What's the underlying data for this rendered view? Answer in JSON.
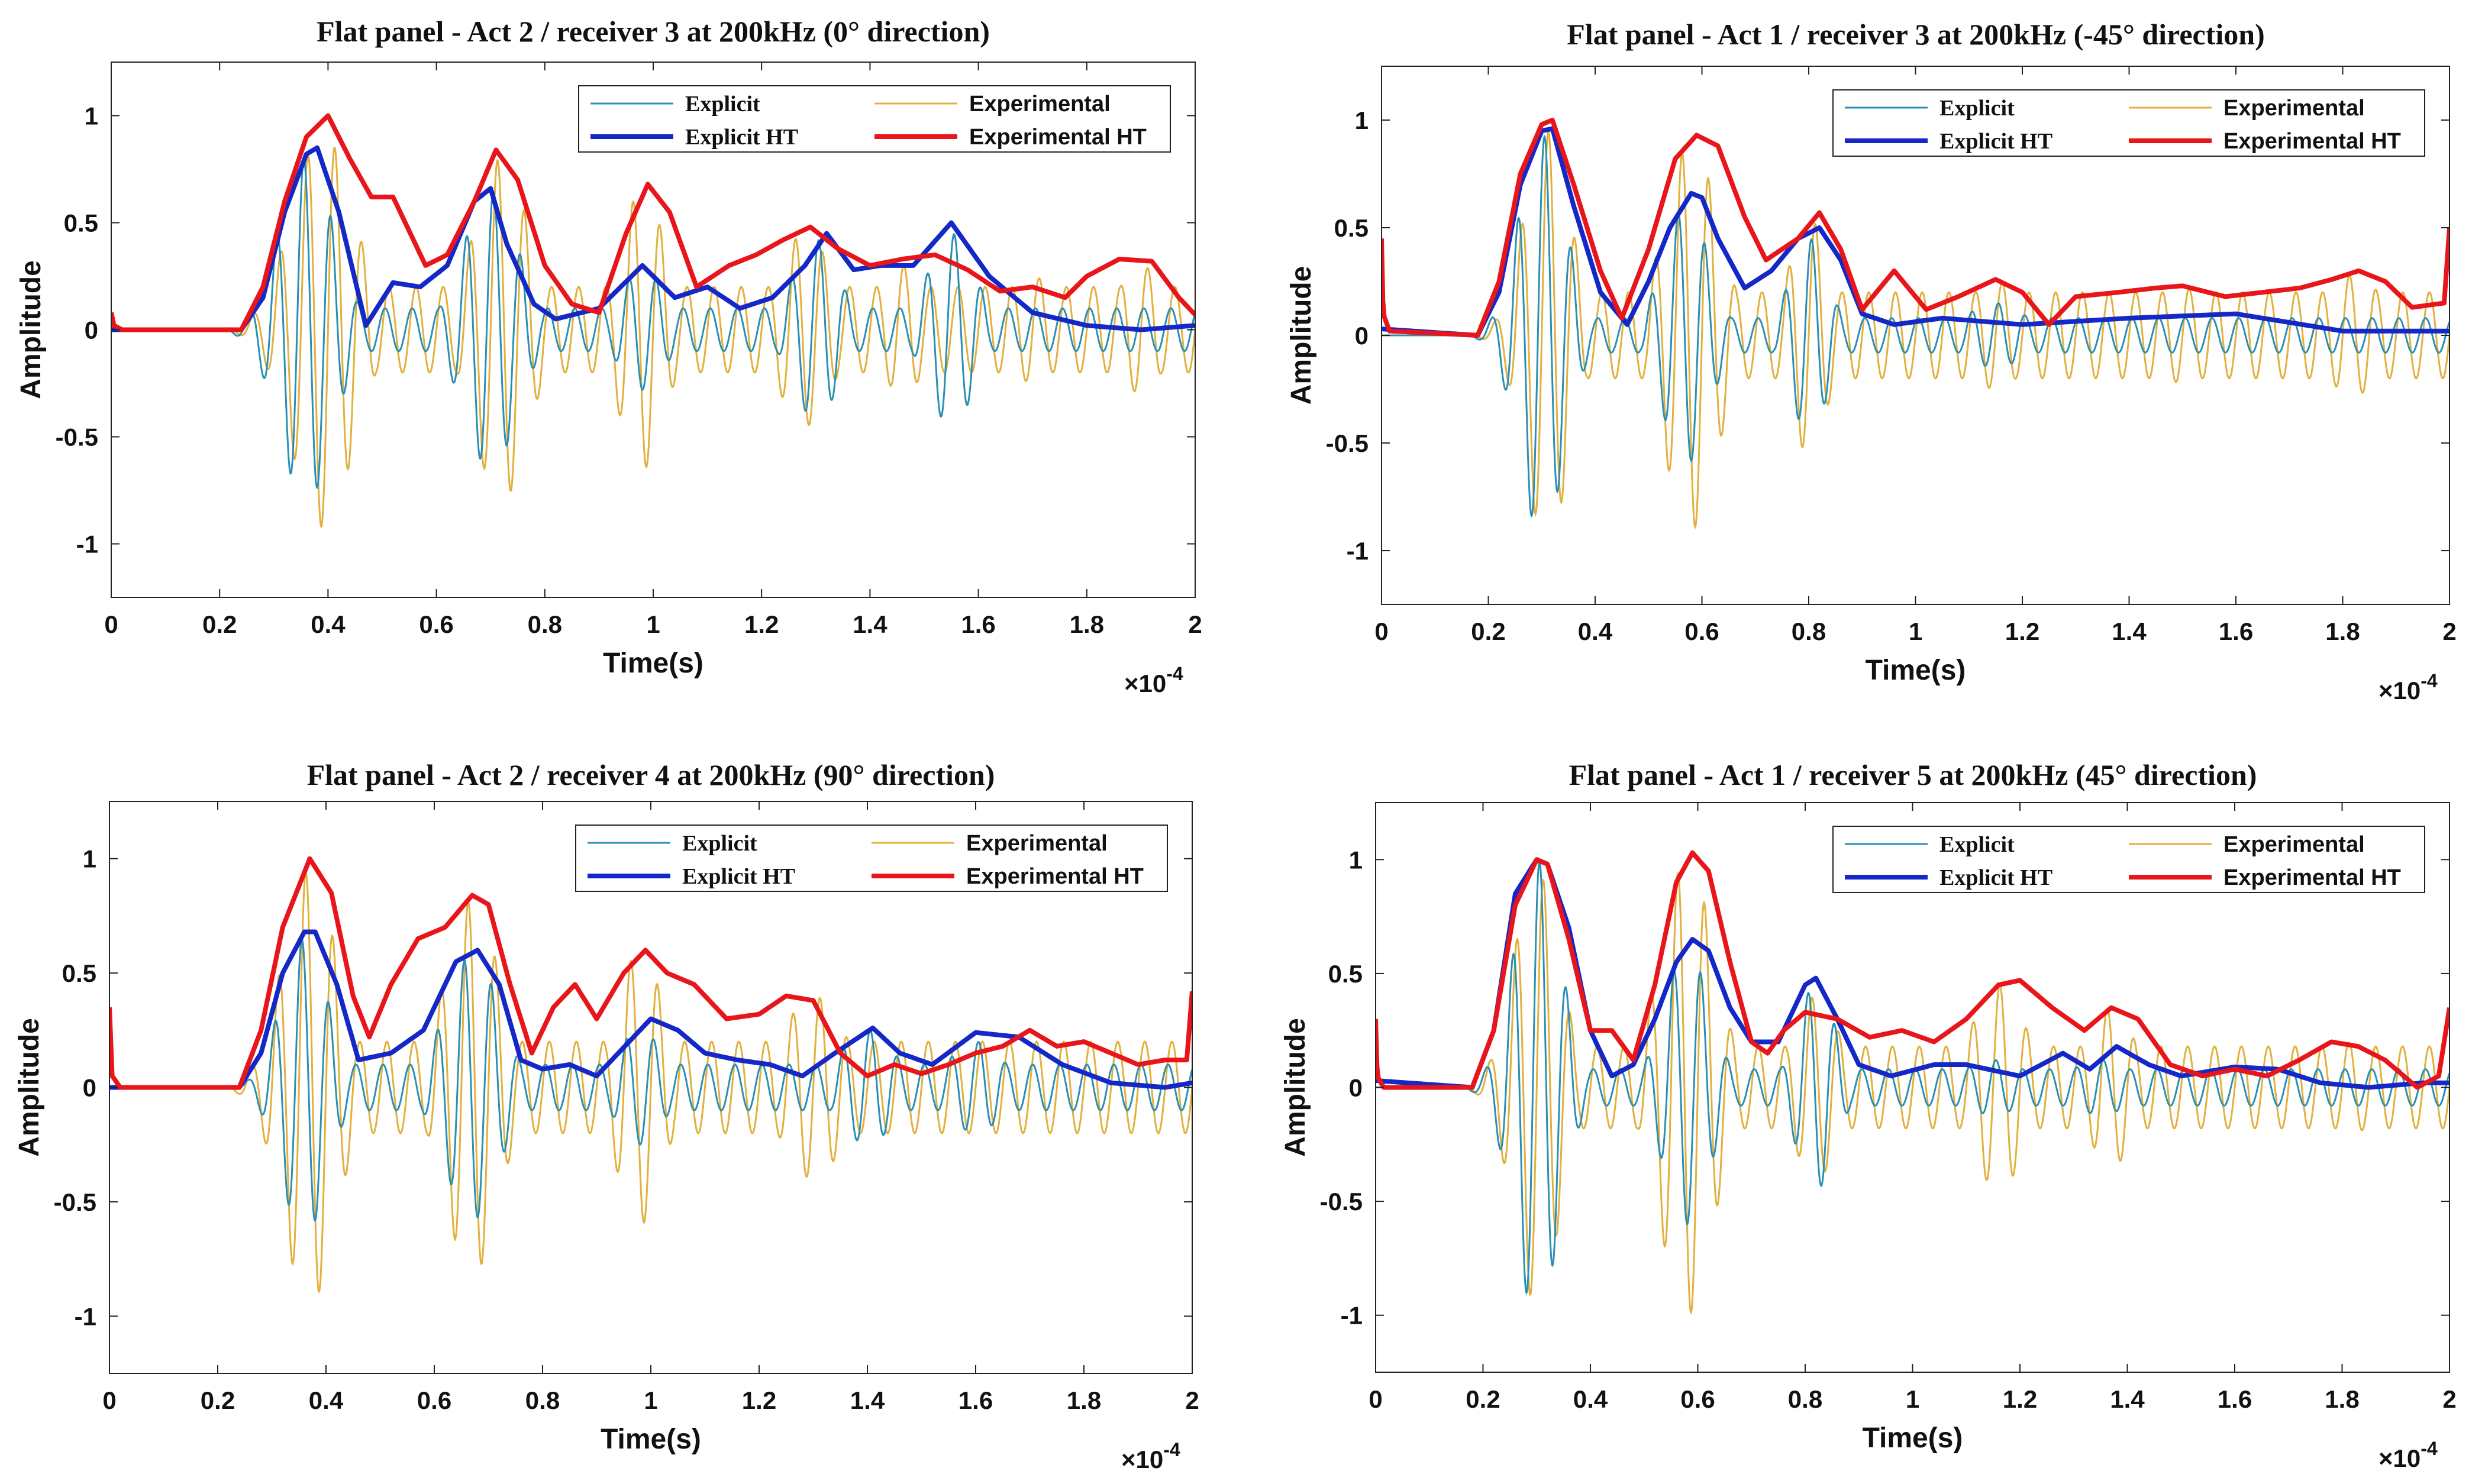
{
  "figure": {
    "colors": {
      "explicit": "#2a8fb5",
      "experimental": "#e2b03c",
      "explicit_ht": "#1428c8",
      "experimental_ht": "#e8161a",
      "axis": "#222222"
    }
  },
  "chart_data": [
    {
      "type": "line",
      "title": "Flat panel - Act 2 / receiver 3 at 200kHz (0° direction)",
      "xlabel": "Time(s)",
      "ylabel": "Amplitude",
      "x_multiplier": "×10",
      "x_exponent": "-4",
      "xlim": [
        0,
        2
      ],
      "ylim": [
        -1.25,
        1.25
      ],
      "xticks": [
        "0",
        "0.2",
        "0.4",
        "0.6",
        "0.8",
        "1",
        "1.2",
        "1.4",
        "1.6",
        "1.8",
        "2"
      ],
      "yticks": [
        "-1",
        "-0.5",
        "0",
        "0.5",
        "1"
      ],
      "legend": {
        "position": "top-right",
        "entries": [
          "Explicit",
          "Experimental",
          "Explicit HT",
          "Experimental HT"
        ]
      },
      "oscillation_cycles_per_unit": 20,
      "series": [
        {
          "name": "Explicit HT",
          "key": "explicit_ht",
          "x": [
            0,
            0.24,
            0.28,
            0.32,
            0.36,
            0.38,
            0.42,
            0.47,
            0.52,
            0.57,
            0.62,
            0.67,
            0.7,
            0.73,
            0.78,
            0.82,
            0.9,
            0.98,
            1.04,
            1.1,
            1.16,
            1.22,
            1.28,
            1.32,
            1.37,
            1.42,
            1.48,
            1.55,
            1.62,
            1.7,
            1.8,
            1.9,
            2.0
          ],
          "y": [
            0,
            0,
            0.15,
            0.55,
            0.82,
            0.85,
            0.55,
            0.02,
            0.22,
            0.2,
            0.3,
            0.6,
            0.66,
            0.4,
            0.12,
            0.05,
            0.1,
            0.3,
            0.15,
            0.2,
            0.1,
            0.15,
            0.3,
            0.45,
            0.28,
            0.3,
            0.3,
            0.5,
            0.25,
            0.08,
            0.02,
            0.0,
            0.02
          ]
        },
        {
          "name": "Experimental HT",
          "key": "experimental_ht",
          "x": [
            0,
            0.005,
            0.02,
            0.24,
            0.28,
            0.32,
            0.36,
            0.4,
            0.44,
            0.48,
            0.52,
            0.58,
            0.62,
            0.67,
            0.71,
            0.75,
            0.8,
            0.85,
            0.9,
            0.95,
            0.99,
            1.03,
            1.08,
            1.14,
            1.19,
            1.24,
            1.29,
            1.34,
            1.4,
            1.46,
            1.52,
            1.58,
            1.64,
            1.7,
            1.76,
            1.8,
            1.86,
            1.92,
            1.97,
            2.0
          ],
          "y": [
            0.08,
            0.02,
            0.0,
            0.0,
            0.2,
            0.6,
            0.9,
            1.0,
            0.8,
            0.62,
            0.62,
            0.3,
            0.35,
            0.6,
            0.84,
            0.7,
            0.3,
            0.12,
            0.08,
            0.45,
            0.68,
            0.55,
            0.2,
            0.3,
            0.35,
            0.42,
            0.48,
            0.38,
            0.3,
            0.33,
            0.35,
            0.28,
            0.18,
            0.2,
            0.15,
            0.25,
            0.33,
            0.32,
            0.15,
            0.07
          ]
        },
        {
          "name": "Explicit",
          "key": "explicit",
          "peak_x": [
            0.36,
            0.7,
            0.98,
            1.3,
            1.55
          ],
          "peak_amp": [
            0.8,
            0.65,
            0.28,
            0.42,
            0.45
          ],
          "peak_width": [
            0.07,
            0.07,
            0.06,
            0.06,
            0.06
          ],
          "floor_amp": 0.1,
          "onset": 0.26
        },
        {
          "name": "Experimental",
          "key": "experimental",
          "peak_x": [
            0.39,
            0.72,
            0.98,
            1.28,
            1.46,
            1.7,
            1.9
          ],
          "peak_amp": [
            0.92,
            0.8,
            0.65,
            0.45,
            0.3,
            0.25,
            0.3
          ],
          "peak_width": [
            0.08,
            0.07,
            0.06,
            0.07,
            0.06,
            0.06,
            0.06
          ],
          "floor_amp": 0.2,
          "onset": 0.26
        }
      ]
    },
    {
      "type": "line",
      "title": "Flat panel - Act 1 / receiver 3 at 200kHz (-45° direction)",
      "xlabel": "Time(s)",
      "ylabel": "Amplitude",
      "x_multiplier": "×10",
      "x_exponent": "-4",
      "xlim": [
        0,
        2
      ],
      "ylim": [
        -1.25,
        1.25
      ],
      "xticks": [
        "0",
        "0.2",
        "0.4",
        "0.6",
        "0.8",
        "1",
        "1.2",
        "1.4",
        "1.6",
        "1.8",
        "2"
      ],
      "yticks": [
        "-1",
        "-0.5",
        "0",
        "0.5",
        "1"
      ],
      "legend": {
        "position": "top-right",
        "entries": [
          "Explicit",
          "Experimental",
          "Explicit HT",
          "Experimental HT"
        ]
      },
      "oscillation_cycles_per_unit": 20,
      "series": [
        {
          "name": "Explicit HT",
          "key": "explicit_ht",
          "x": [
            0,
            0.18,
            0.22,
            0.26,
            0.3,
            0.32,
            0.36,
            0.41,
            0.46,
            0.5,
            0.54,
            0.58,
            0.6,
            0.63,
            0.68,
            0.73,
            0.78,
            0.82,
            0.86,
            0.9,
            0.96,
            1.05,
            1.2,
            1.4,
            1.6,
            1.8,
            2.0
          ],
          "y": [
            0.03,
            0.0,
            0.2,
            0.7,
            0.95,
            0.96,
            0.6,
            0.2,
            0.05,
            0.25,
            0.5,
            0.66,
            0.64,
            0.45,
            0.22,
            0.3,
            0.45,
            0.5,
            0.35,
            0.1,
            0.05,
            0.08,
            0.05,
            0.08,
            0.1,
            0.02,
            0.02
          ]
        },
        {
          "name": "Experimental HT",
          "key": "experimental_ht",
          "x": [
            0,
            0.003,
            0.015,
            0.18,
            0.22,
            0.26,
            0.3,
            0.32,
            0.36,
            0.41,
            0.45,
            0.5,
            0.55,
            0.59,
            0.63,
            0.68,
            0.72,
            0.78,
            0.82,
            0.86,
            0.9,
            0.96,
            1.02,
            1.08,
            1.15,
            1.2,
            1.25,
            1.3,
            1.38,
            1.45,
            1.5,
            1.58,
            1.65,
            1.72,
            1.78,
            1.83,
            1.88,
            1.93,
            1.99,
            2.0
          ],
          "y": [
            0.45,
            0.1,
            0.02,
            0.0,
            0.25,
            0.75,
            0.98,
            1.0,
            0.7,
            0.3,
            0.08,
            0.4,
            0.82,
            0.93,
            0.88,
            0.55,
            0.35,
            0.45,
            0.57,
            0.4,
            0.12,
            0.3,
            0.12,
            0.18,
            0.26,
            0.2,
            0.05,
            0.18,
            0.2,
            0.22,
            0.23,
            0.18,
            0.2,
            0.22,
            0.26,
            0.3,
            0.25,
            0.13,
            0.15,
            0.5
          ]
        },
        {
          "name": "Explicit",
          "key": "explicit",
          "peak_x": [
            0.3,
            0.57,
            0.8,
            1.15
          ],
          "peak_amp": [
            0.93,
            0.6,
            0.45,
            0.15
          ],
          "peak_width": [
            0.06,
            0.06,
            0.05,
            0.08
          ],
          "floor_amp": 0.08,
          "onset": 0.2
        },
        {
          "name": "Experimental",
          "key": "experimental",
          "peak_x": [
            0.31,
            0.58,
            0.8,
            1.15,
            1.5,
            1.82
          ],
          "peak_amp": [
            0.95,
            0.9,
            0.55,
            0.25,
            0.22,
            0.28
          ],
          "peak_width": [
            0.06,
            0.07,
            0.05,
            0.08,
            0.1,
            0.08
          ],
          "floor_amp": 0.2,
          "onset": 0.2
        }
      ]
    },
    {
      "type": "line",
      "title": "Flat panel - Act 2 / receiver 4 at 200kHz (90° direction)",
      "xlabel": "Time(s)",
      "ylabel": "Amplitude",
      "x_multiplier": "×10",
      "x_exponent": "-4",
      "xlim": [
        0,
        2
      ],
      "ylim": [
        -1.25,
        1.25
      ],
      "xticks": [
        "0",
        "0.2",
        "0.4",
        "0.6",
        "0.8",
        "1",
        "1.2",
        "1.4",
        "1.6",
        "1.8",
        "2"
      ],
      "yticks": [
        "-1",
        "-0.5",
        "0",
        "0.5",
        "1"
      ],
      "legend": {
        "position": "top-right",
        "entries": [
          "Explicit",
          "Experimental",
          "Explicit HT",
          "Experimental HT"
        ]
      },
      "oscillation_cycles_per_unit": 20,
      "series": [
        {
          "name": "Explicit HT",
          "key": "explicit_ht",
          "x": [
            0,
            0.24,
            0.28,
            0.32,
            0.36,
            0.38,
            0.42,
            0.46,
            0.52,
            0.58,
            0.64,
            0.68,
            0.72,
            0.76,
            0.8,
            0.85,
            0.9,
            0.96,
            1.0,
            1.05,
            1.1,
            1.16,
            1.22,
            1.28,
            1.34,
            1.41,
            1.46,
            1.52,
            1.6,
            1.68,
            1.76,
            1.85,
            1.95,
            2.0
          ],
          "y": [
            0,
            0,
            0.15,
            0.5,
            0.68,
            0.68,
            0.45,
            0.12,
            0.15,
            0.25,
            0.55,
            0.6,
            0.45,
            0.12,
            0.08,
            0.1,
            0.05,
            0.2,
            0.3,
            0.25,
            0.15,
            0.12,
            0.1,
            0.05,
            0.15,
            0.26,
            0.15,
            0.1,
            0.24,
            0.22,
            0.1,
            0.02,
            0.0,
            0.02
          ]
        },
        {
          "name": "Experimental HT",
          "key": "experimental_ht",
          "x": [
            0,
            0.005,
            0.02,
            0.24,
            0.28,
            0.32,
            0.37,
            0.41,
            0.45,
            0.48,
            0.52,
            0.57,
            0.62,
            0.67,
            0.7,
            0.74,
            0.78,
            0.82,
            0.86,
            0.9,
            0.95,
            0.99,
            1.03,
            1.08,
            1.14,
            1.2,
            1.25,
            1.3,
            1.35,
            1.4,
            1.45,
            1.5,
            1.55,
            1.6,
            1.65,
            1.7,
            1.75,
            1.8,
            1.85,
            1.9,
            1.95,
            1.99,
            2.0
          ],
          "y": [
            0.35,
            0.05,
            0.0,
            0.0,
            0.25,
            0.7,
            1.0,
            0.85,
            0.4,
            0.22,
            0.45,
            0.65,
            0.7,
            0.84,
            0.8,
            0.45,
            0.15,
            0.35,
            0.45,
            0.3,
            0.5,
            0.6,
            0.5,
            0.45,
            0.3,
            0.32,
            0.4,
            0.38,
            0.15,
            0.05,
            0.1,
            0.06,
            0.1,
            0.15,
            0.18,
            0.25,
            0.18,
            0.2,
            0.15,
            0.1,
            0.12,
            0.12,
            0.42
          ]
        },
        {
          "name": "Explicit",
          "key": "explicit",
          "peak_x": [
            0.36,
            0.67,
            0.98,
            1.4,
            1.6
          ],
          "peak_amp": [
            0.65,
            0.58,
            0.25,
            0.25,
            0.2
          ],
          "peak_width": [
            0.06,
            0.07,
            0.06,
            0.07,
            0.07
          ],
          "floor_amp": 0.1,
          "onset": 0.26
        },
        {
          "name": "Experimental",
          "key": "experimental",
          "peak_x": [
            0.37,
            0.67,
            0.98,
            1.3
          ],
          "peak_amp": [
            0.95,
            0.82,
            0.6,
            0.4
          ],
          "peak_width": [
            0.07,
            0.07,
            0.06,
            0.08
          ],
          "floor_amp": 0.2,
          "onset": 0.26
        }
      ]
    },
    {
      "type": "line",
      "title": "Flat panel - Act 1 / receiver 5 at 200kHz (45° direction)",
      "xlabel": "Time(s)",
      "ylabel": "Amplitude",
      "x_multiplier": "×10",
      "x_exponent": "-4",
      "xlim": [
        0,
        2
      ],
      "ylim": [
        -1.25,
        1.25
      ],
      "xticks": [
        "0",
        "0.2",
        "0.4",
        "0.6",
        "0.8",
        "1",
        "1.2",
        "1.4",
        "1.6",
        "1.8",
        "2"
      ],
      "yticks": [
        "-1",
        "-0.5",
        "0",
        "0.5",
        "1"
      ],
      "legend": {
        "position": "top-right",
        "entries": [
          "Explicit",
          "Experimental",
          "Explicit HT",
          "Experimental HT"
        ]
      },
      "oscillation_cycles_per_unit": 20,
      "series": [
        {
          "name": "Explicit HT",
          "key": "explicit_ht",
          "x": [
            0,
            0.18,
            0.22,
            0.26,
            0.3,
            0.32,
            0.36,
            0.4,
            0.44,
            0.48,
            0.52,
            0.56,
            0.59,
            0.62,
            0.66,
            0.7,
            0.75,
            0.8,
            0.82,
            0.86,
            0.9,
            0.96,
            1.04,
            1.1,
            1.2,
            1.28,
            1.33,
            1.38,
            1.44,
            1.5,
            1.6,
            1.68,
            1.76,
            1.85,
            1.95,
            2.0
          ],
          "y": [
            0.03,
            0.0,
            0.25,
            0.85,
            1.0,
            0.98,
            0.7,
            0.25,
            0.05,
            0.1,
            0.3,
            0.55,
            0.65,
            0.6,
            0.35,
            0.2,
            0.2,
            0.45,
            0.48,
            0.3,
            0.1,
            0.05,
            0.1,
            0.1,
            0.05,
            0.15,
            0.08,
            0.18,
            0.1,
            0.05,
            0.09,
            0.08,
            0.02,
            0.0,
            0.02,
            0.02
          ]
        },
        {
          "name": "Experimental HT",
          "key": "experimental_ht",
          "x": [
            0,
            0.003,
            0.015,
            0.18,
            0.22,
            0.26,
            0.3,
            0.32,
            0.36,
            0.4,
            0.44,
            0.48,
            0.52,
            0.56,
            0.59,
            0.62,
            0.66,
            0.7,
            0.73,
            0.76,
            0.8,
            0.86,
            0.92,
            0.98,
            1.04,
            1.1,
            1.16,
            1.2,
            1.26,
            1.32,
            1.37,
            1.42,
            1.48,
            1.54,
            1.6,
            1.66,
            1.72,
            1.78,
            1.83,
            1.88,
            1.94,
            1.98,
            2.0
          ],
          "y": [
            0.3,
            0.05,
            0.0,
            0.0,
            0.25,
            0.8,
            1.0,
            0.98,
            0.65,
            0.25,
            0.25,
            0.12,
            0.45,
            0.9,
            1.03,
            0.95,
            0.55,
            0.2,
            0.15,
            0.25,
            0.33,
            0.3,
            0.22,
            0.25,
            0.2,
            0.3,
            0.45,
            0.47,
            0.35,
            0.25,
            0.35,
            0.3,
            0.1,
            0.05,
            0.08,
            0.05,
            0.12,
            0.2,
            0.18,
            0.12,
            0.0,
            0.05,
            0.35
          ]
        },
        {
          "name": "Explicit",
          "key": "explicit",
          "peak_x": [
            0.3,
            0.58,
            0.82,
            1.15,
            1.35
          ],
          "peak_amp": [
            1.0,
            0.6,
            0.45,
            0.12,
            0.12
          ],
          "peak_width": [
            0.06,
            0.06,
            0.05,
            0.08,
            0.08
          ],
          "floor_amp": 0.08,
          "onset": 0.2
        },
        {
          "name": "Experimental",
          "key": "experimental",
          "peak_x": [
            0.3,
            0.58,
            0.82,
            1.16,
            1.37,
            1.82
          ],
          "peak_amp": [
            0.95,
            1.0,
            0.4,
            0.45,
            0.35,
            0.2
          ],
          "peak_width": [
            0.06,
            0.07,
            0.06,
            0.07,
            0.06,
            0.07
          ],
          "floor_amp": 0.18,
          "onset": 0.2
        }
      ]
    }
  ]
}
